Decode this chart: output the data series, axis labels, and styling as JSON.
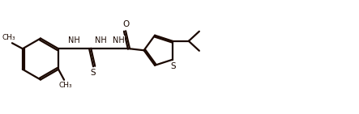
{
  "bg_color": "#ffffff",
  "line_color": "#1a0800",
  "line_width": 1.6,
  "figsize": [
    4.43,
    1.41
  ],
  "dpi": 100,
  "xlim": [
    0,
    4.43
  ],
  "ylim": [
    0,
    1.41
  ]
}
